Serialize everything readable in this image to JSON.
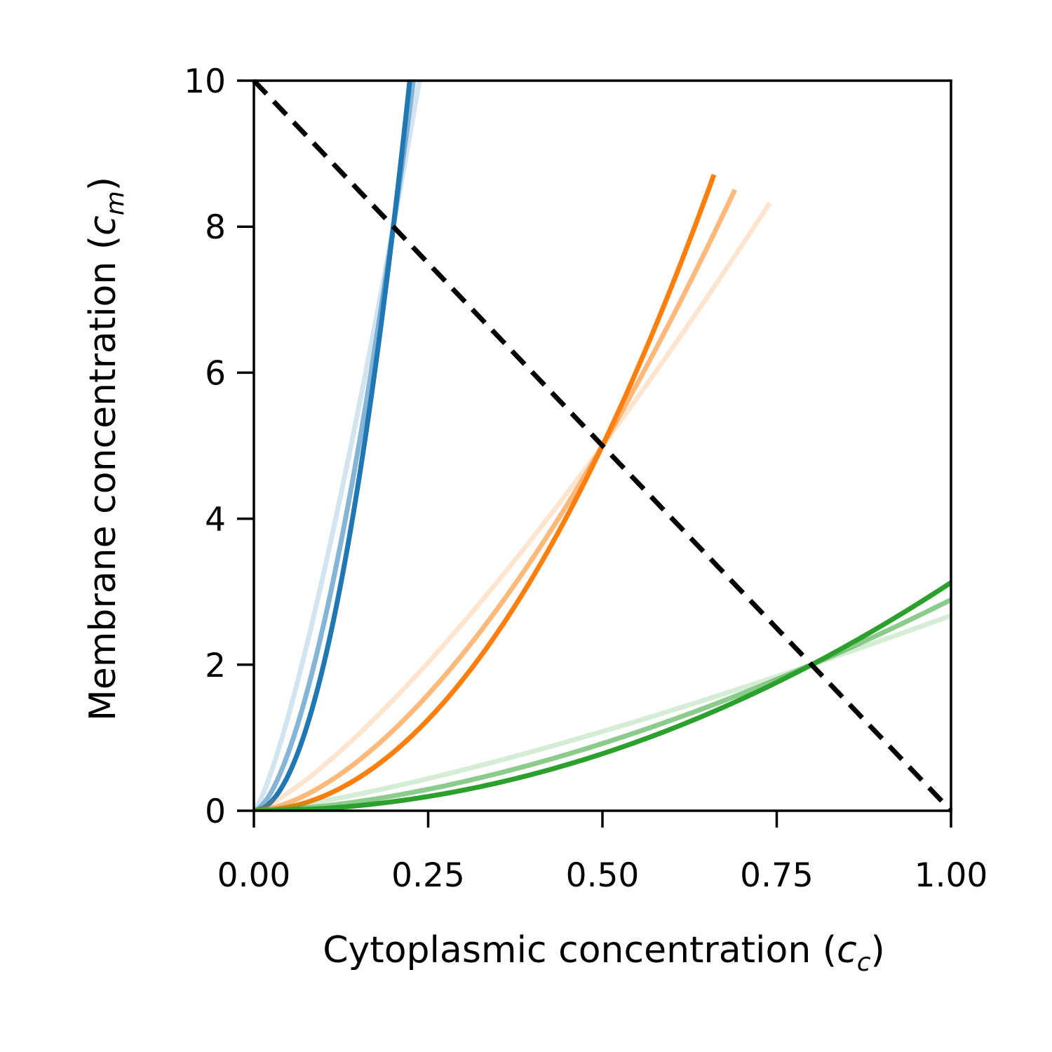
{
  "chart_data": {
    "type": "line",
    "xlabel": "Cytoplasmic concentration (",
    "xlabel_var": "c",
    "xlabel_sub": "c",
    "xlabel_end": ")",
    "ylabel": "Membrane concentration (",
    "ylabel_var": "c",
    "ylabel_sub": "m",
    "ylabel_end": ")",
    "xlim": [
      0,
      1
    ],
    "ylim": [
      0,
      10
    ],
    "xticks": [
      0,
      0.25,
      0.5,
      0.75,
      1.0
    ],
    "xtick_labels": [
      "0.00",
      "0.25",
      "0.50",
      "0.75",
      "1.00"
    ],
    "yticks": [
      0,
      2,
      4,
      6,
      8,
      10
    ],
    "ytick_labels": [
      "0",
      "2",
      "4",
      "6",
      "8",
      "10"
    ],
    "grid": false,
    "legend": "none",
    "reference_line": {
      "style": "dashed",
      "color": "#000000",
      "x": [
        0,
        1
      ],
      "y": [
        10,
        0
      ]
    },
    "series": [
      {
        "color": "#1f77b4",
        "opacity": 0.2,
        "exponent": 1.3,
        "x0": 0.2,
        "y0": 8,
        "x": [
          0,
          0.25
        ],
        "y": [
          0,
          10.67
        ]
      },
      {
        "color": "#1f77b4",
        "opacity": 0.55,
        "exponent": 1.65,
        "x0": 0.2,
        "y0": 8,
        "x": [
          0,
          0.232
        ],
        "y": [
          0,
          10.29
        ]
      },
      {
        "color": "#1f77b4",
        "opacity": 1.0,
        "exponent": 2.0,
        "x0": 0.2,
        "y0": 8,
        "x": [
          0,
          0.2236
        ],
        "y": [
          0,
          10.0
        ]
      },
      {
        "color": "#ff7f0e",
        "opacity": 0.2,
        "exponent": 1.3,
        "x0": 0.5,
        "y0": 5,
        "x": [
          0,
          0.74
        ],
        "y": [
          0,
          7.7
        ]
      },
      {
        "color": "#ff7f0e",
        "opacity": 0.55,
        "exponent": 1.65,
        "x0": 0.5,
        "y0": 5,
        "x": [
          0,
          0.69
        ],
        "y": [
          0,
          8.2
        ]
      },
      {
        "color": "#ff7f0e",
        "opacity": 1.0,
        "exponent": 2.0,
        "x0": 0.5,
        "y0": 5,
        "x": [
          0,
          0.66
        ],
        "y": [
          0,
          8.5
        ]
      },
      {
        "color": "#2ca02c",
        "opacity": 0.2,
        "exponent": 1.3,
        "x0": 0.8,
        "y0": 2,
        "x": [
          0,
          1.0
        ],
        "y": [
          0,
          2.6
        ]
      },
      {
        "color": "#2ca02c",
        "opacity": 0.55,
        "exponent": 1.65,
        "x0": 0.8,
        "y0": 2,
        "x": [
          0,
          1.0
        ],
        "y": [
          0,
          2.9
        ]
      },
      {
        "color": "#2ca02c",
        "opacity": 1.0,
        "exponent": 2.0,
        "x0": 0.8,
        "y0": 2,
        "x": [
          0,
          1.0
        ],
        "y": [
          0,
          3.1
        ]
      }
    ]
  }
}
